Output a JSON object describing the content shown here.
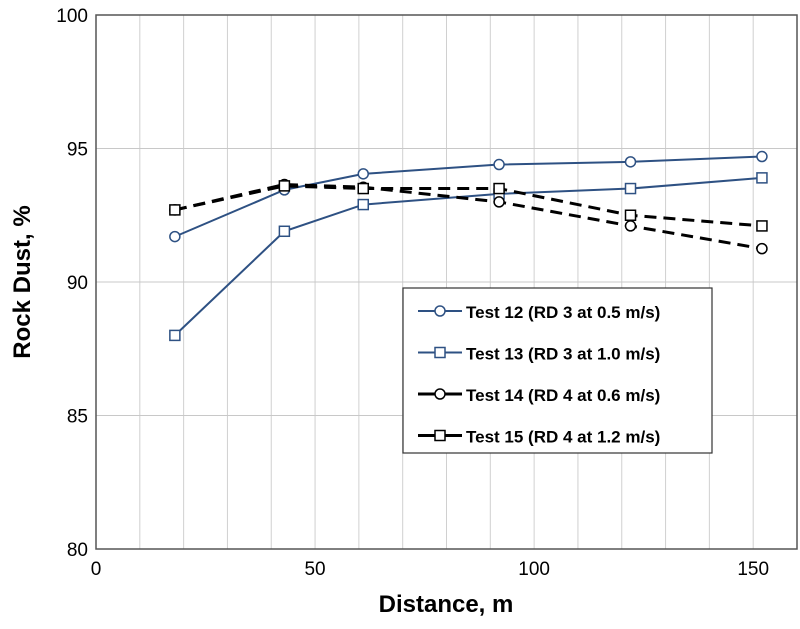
{
  "chart_data": {
    "type": "line",
    "title": "",
    "xlabel": "Distance, m",
    "ylabel": "Rock Dust, %",
    "xlim": [
      0,
      160
    ],
    "ylim": [
      80,
      100
    ],
    "xticks": [
      0,
      50,
      100,
      150
    ],
    "yticks": [
      80,
      85,
      90,
      95,
      100
    ],
    "x_grid_step": 10,
    "grid": true,
    "legend_position": "center-right",
    "x": [
      18,
      43,
      61,
      92,
      122,
      152
    ],
    "series": [
      {
        "name": "Test 12 (RD 3 at 0.5 m/s)",
        "values": [
          91.7,
          93.45,
          94.05,
          94.4,
          94.5,
          94.7
        ],
        "color": "#2e5183",
        "dash": false,
        "marker": "circle"
      },
      {
        "name": "Test 13 (RD 3 at 1.0 m/s)",
        "values": [
          88.0,
          91.9,
          92.9,
          93.3,
          93.5,
          93.9
        ],
        "color": "#2e5183",
        "dash": true,
        "marker": "square",
        "solid": true
      },
      {
        "name": "Test 14 (RD 4 at 0.6 m/s)",
        "values": [
          92.7,
          93.65,
          93.55,
          93.0,
          92.1,
          91.25
        ],
        "color": "#000000",
        "dash": true,
        "marker": "circle"
      },
      {
        "name": "Test 15 (RD 4 at 1.2 m/s)",
        "values": [
          92.7,
          93.6,
          93.5,
          93.5,
          92.5,
          92.1
        ],
        "color": "#000000",
        "dash": true,
        "marker": "square"
      }
    ]
  }
}
